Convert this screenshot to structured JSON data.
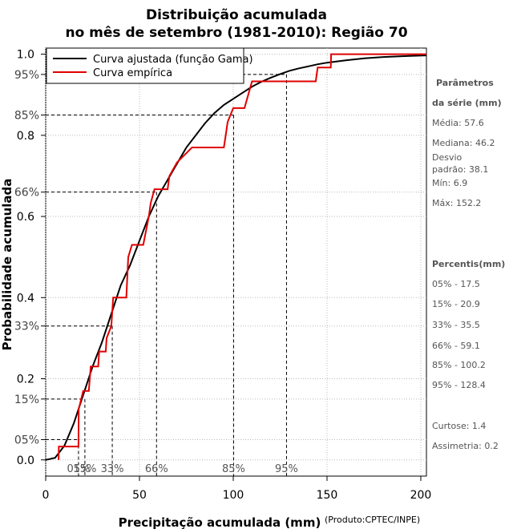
{
  "chart_data": {
    "type": "line",
    "title_line1": "Distribuição acumulada",
    "title_line2": "no mês de setembro (1981-2010): Região 70",
    "xlabel": "Precipitação acumulada (mm)",
    "ylabel": "Probabilidade acumulada",
    "credit": "(Produto:CPTEC/INPE)",
    "xlim": [
      0,
      203
    ],
    "ylim": [
      -0.04,
      1.015
    ],
    "x_ticks": [
      0,
      50,
      100,
      150,
      200
    ],
    "x_tick_labels": [
      "0",
      "50",
      "100",
      "150",
      "200"
    ],
    "y_ticks": [
      0.0,
      0.2,
      0.4,
      0.6,
      0.8,
      1.0
    ],
    "y_tick_labels": [
      "0.0",
      "0.2",
      "0.4",
      "0.6",
      "0.8",
      "1.0"
    ],
    "grid": true,
    "legend": [
      {
        "label": "Curva ajustada (função Gama)",
        "color": "#000000"
      },
      {
        "label": "Curva empírica",
        "color": "#e00000"
      }
    ],
    "fitted_curve": {
      "name": "Curva ajustada (função Gama)",
      "color": "#000000",
      "x": [
        0,
        5,
        10,
        15,
        20,
        25,
        30,
        35,
        40,
        45,
        50,
        55,
        60,
        65,
        70,
        75,
        80,
        85,
        90,
        95,
        100,
        105,
        110,
        115,
        120,
        125,
        130,
        135,
        140,
        145,
        150,
        160,
        170,
        180,
        190,
        203
      ],
      "y": [
        0.0,
        0.005,
        0.035,
        0.09,
        0.16,
        0.23,
        0.29,
        0.36,
        0.43,
        0.48,
        0.54,
        0.6,
        0.65,
        0.69,
        0.73,
        0.77,
        0.8,
        0.83,
        0.855,
        0.875,
        0.89,
        0.905,
        0.92,
        0.932,
        0.942,
        0.951,
        0.959,
        0.965,
        0.97,
        0.975,
        0.979,
        0.985,
        0.99,
        0.993,
        0.995,
        0.997
      ]
    },
    "empirical_curve": {
      "name": "Curva empírica",
      "color": "#e00000",
      "steps": [
        [
          6.9,
          0.0
        ],
        [
          7.0,
          0.033
        ],
        [
          17.5,
          0.033
        ],
        [
          17.6,
          0.125
        ],
        [
          20.0,
          0.17
        ],
        [
          23.0,
          0.17
        ],
        [
          24.0,
          0.23
        ],
        [
          28.0,
          0.23
        ],
        [
          28.5,
          0.267
        ],
        [
          32.0,
          0.267
        ],
        [
          32.5,
          0.3
        ],
        [
          35.0,
          0.33
        ],
        [
          36.0,
          0.4
        ],
        [
          43.0,
          0.4
        ],
        [
          44.0,
          0.5
        ],
        [
          46.0,
          0.53
        ],
        [
          52.0,
          0.53
        ],
        [
          55.0,
          0.6
        ],
        [
          56.0,
          0.633
        ],
        [
          58.0,
          0.667
        ],
        [
          65.0,
          0.667
        ],
        [
          66.0,
          0.7
        ],
        [
          70.0,
          0.733
        ],
        [
          78.0,
          0.77
        ],
        [
          95.0,
          0.77
        ],
        [
          96.0,
          0.8
        ],
        [
          97.0,
          0.833
        ],
        [
          100.0,
          0.867
        ],
        [
          106.0,
          0.867
        ],
        [
          110.0,
          0.933
        ],
        [
          144.0,
          0.933
        ],
        [
          145.0,
          0.967
        ],
        [
          152.0,
          0.967
        ],
        [
          152.2,
          1.0
        ],
        [
          203.0,
          1.0
        ]
      ]
    },
    "percentiles": [
      {
        "p": 0.05,
        "label": "05%",
        "value": 17.5,
        "y_label": "05%",
        "bottom_label": "05%"
      },
      {
        "p": 0.15,
        "label": "15%",
        "value": 20.9,
        "y_label": "15%",
        "bottom_label": "15%"
      },
      {
        "p": 0.33,
        "label": "33%",
        "value": 35.5,
        "y_label": "33%",
        "bottom_label": "33%"
      },
      {
        "p": 0.66,
        "label": "66%",
        "value": 59.1,
        "y_label": "66%",
        "bottom_label": "66%"
      },
      {
        "p": 0.85,
        "label": "85%",
        "value": 100.2,
        "y_label": "85%",
        "bottom_label": "85%"
      },
      {
        "p": 0.95,
        "label": "95%",
        "value": 128.4,
        "y_label": "95%",
        "bottom_label": "95%"
      }
    ]
  },
  "side_panel": {
    "params_title_line1": "Parâmetros",
    "params_title_line2": "da série (mm)",
    "media": "Média: 57.6",
    "mediana": "Mediana: 46.2",
    "desvio_line1": "Desvio",
    "desvio_line2": "padrão: 38.1",
    "min": "Mín: 6.9",
    "max": "Máx: 152.2",
    "percentis_title": "Percentis(mm)",
    "percentis": [
      "05% - 17.5",
      "15% - 20.9",
      "33% - 35.5",
      "66% - 59.1",
      "85% - 100.2",
      "95% - 128.4"
    ],
    "curtose": "Curtose: 1.4",
    "assimetria": "Assimetria: 0.2"
  }
}
